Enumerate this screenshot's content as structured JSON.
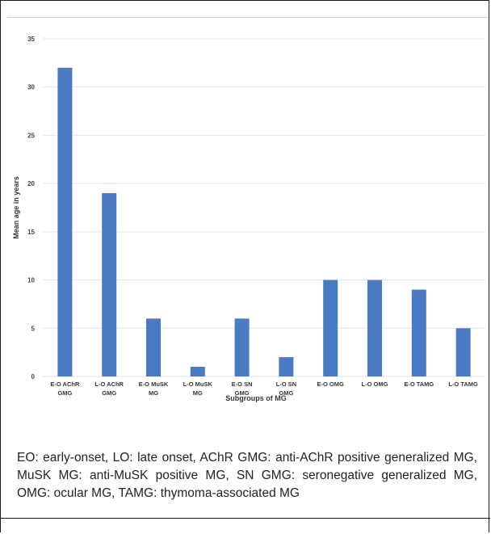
{
  "chart_data": {
    "type": "bar",
    "title": "",
    "xlabel": "Subgroups of MG",
    "ylabel": "Mean age in years",
    "ylim": [
      0,
      35
    ],
    "yticks": [
      0,
      5,
      10,
      15,
      20,
      25,
      30,
      35
    ],
    "grid": true,
    "legend": "none",
    "bar_color": "#4a7ac2",
    "categories": [
      [
        "E-O AChR",
        "GMG"
      ],
      [
        "L-O AChR",
        "GMG"
      ],
      [
        "E-O MuSK",
        "MG"
      ],
      [
        "L-O MuSK",
        "MG"
      ],
      [
        "E-O SN",
        "GMG"
      ],
      [
        "L-O SN",
        "GMG"
      ],
      [
        "E-O OMG"
      ],
      [
        "L-O OMG"
      ],
      [
        "E-O TAMG"
      ],
      [
        "L-O TAMG"
      ]
    ],
    "values": [
      32,
      19,
      6,
      1,
      6,
      2,
      10,
      10,
      9,
      5
    ]
  },
  "caption": "EO: early-onset, LO: late onset, AChR GMG: anti-AChR positive generalized MG, MuSK MG: anti-MuSK positive MG, SN GMG: seronegative generalized MG, OMG: ocular MG, TAMG: thymoma-associated MG"
}
